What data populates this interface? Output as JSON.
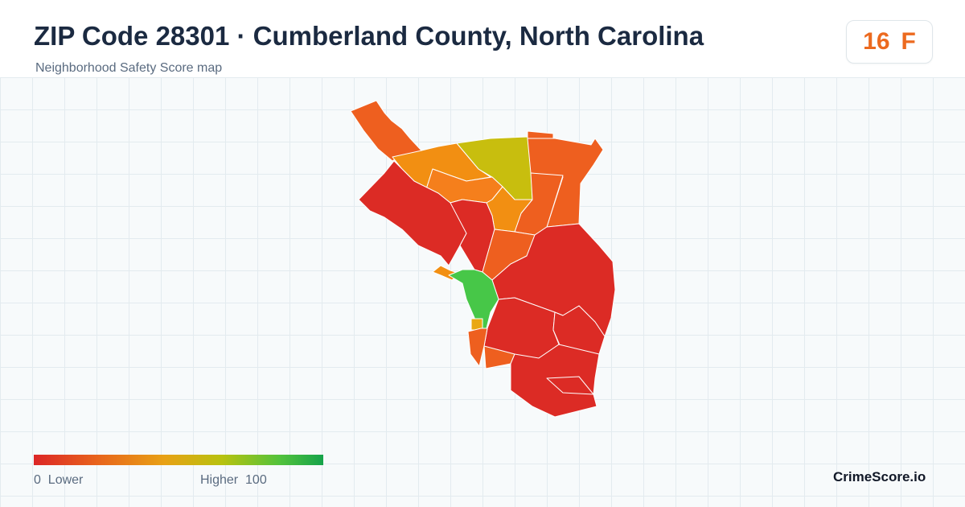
{
  "header": {
    "title": "ZIP Code 28301 · Cumberland County, North Carolina",
    "subtitle": "Neighborhood Safety Score map"
  },
  "score": {
    "value": "16",
    "grade": "F",
    "color": "#ec6a1f"
  },
  "legend": {
    "low_value": "0",
    "low_label": "Lower",
    "high_label": "Higher",
    "high_value": "100",
    "colors": [
      "#dc2626",
      "#e8641c",
      "#e8a115",
      "#b8c20f",
      "#52c23c",
      "#16a34a"
    ]
  },
  "brand": "CrimeScore.io",
  "map": {
    "region_colors": {
      "low": "#dc2b25",
      "orange_red": "#ee5f1f",
      "orange": "#f57f1c",
      "amber": "#f28f12",
      "yellow_green": "#c8be0e",
      "green": "#47c748",
      "gold": "#e9a813"
    }
  }
}
